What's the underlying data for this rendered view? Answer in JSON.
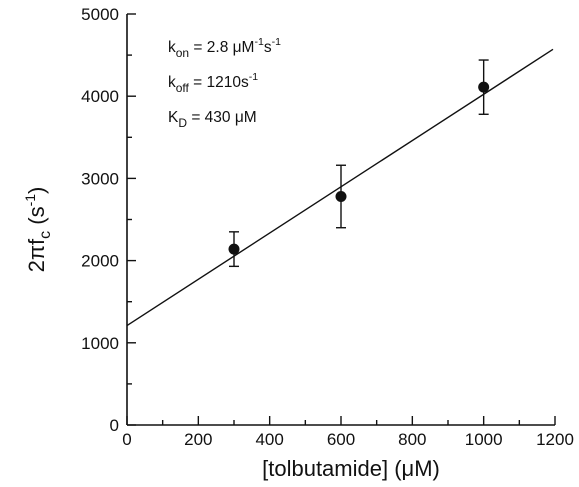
{
  "chart_data": {
    "type": "scatter",
    "title": "",
    "xlabel": "[tolbutamide] (μM)",
    "ylabel": {
      "base": "2πf",
      "subscript": "c",
      "open": " (s",
      "superscript": "-1",
      "close": ")"
    },
    "xlim": [
      0,
      1200
    ],
    "ylim": [
      0,
      5000
    ],
    "x_ticks": [
      "0",
      "200",
      "400",
      "600",
      "800",
      "1000",
      "1200"
    ],
    "y_ticks": [
      "0",
      "1000",
      "2000",
      "3000",
      "4000",
      "5000"
    ],
    "points": [
      {
        "x": 300,
        "y": 2140,
        "err_low": 1930,
        "err_high": 2350
      },
      {
        "x": 600,
        "y": 2780,
        "err_low": 2400,
        "err_high": 3160
      },
      {
        "x": 1000,
        "y": 4110,
        "err_low": 3780,
        "err_high": 4440
      }
    ],
    "fit_line": {
      "intercept": 1210,
      "slope": 2.8,
      "x_range": [
        0,
        1200
      ]
    },
    "annotations": [
      {
        "label": "k",
        "sub": "on",
        "sup": "",
        "text": " = 2.8 μM",
        "sup2": "-1",
        "tail": "s",
        "sup3": "-1"
      },
      {
        "label": "k",
        "sub": "off",
        "sup": "",
        "text": " = 1210s",
        "sup2": "-1",
        "tail": "",
        "sup3": ""
      },
      {
        "label": "K",
        "sub": "D",
        "sup": "",
        "text": " = 430 μM",
        "sup2": "",
        "tail": "",
        "sup3": ""
      }
    ],
    "grid": false,
    "legend": "none"
  },
  "colors": {
    "ink": "#111111",
    "background": "#ffffff"
  }
}
